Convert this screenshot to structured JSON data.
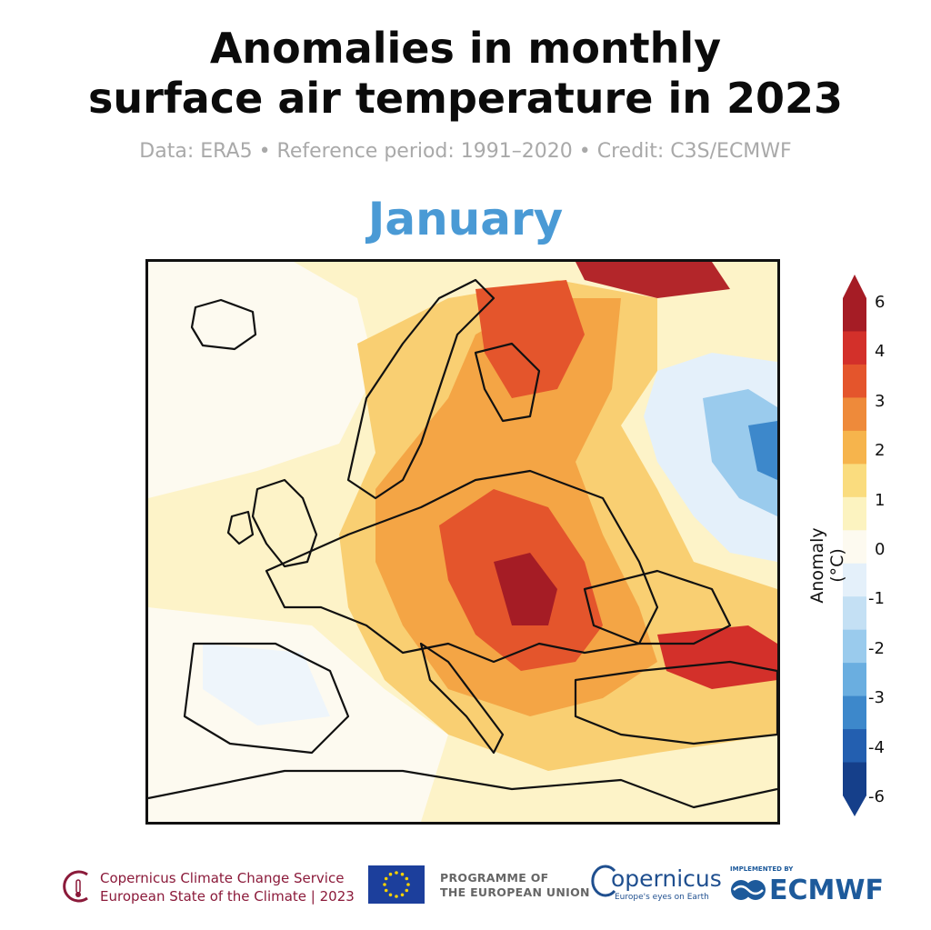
{
  "title_line1": "Anomalies in monthly",
  "title_line2": "surface air temperature in 2023",
  "subtitle": "Data: ERA5 • Reference period: 1991–2020 • Credit: C3S/ECMWF",
  "month": "January",
  "colorbar": {
    "title": "Anomaly (°C)",
    "ticks": [
      "6",
      "4",
      "3",
      "2",
      "1",
      "0",
      "-1",
      "-2",
      "-3",
      "-4",
      "-6"
    ],
    "colors": [
      "#a51c25",
      "#d3302a",
      "#e4552c",
      "#ee8a3a",
      "#f6b44c",
      "#fadc7e",
      "#fcf3c0",
      "#fdfaf0",
      "#e4f0fa",
      "#c4e0f4",
      "#9acbed",
      "#6aaee0",
      "#3d88cb",
      "#235fb0",
      "#153f8a"
    ]
  },
  "footer": {
    "c3s_line1": "Copernicus Climate Change Service",
    "c3s_line2": "European State of the Climate | 2023",
    "eu_line1": "PROGRAMME OF",
    "eu_line2": "THE EUROPEAN UNION",
    "copernicus": "opernicus",
    "copernicus_tag": "Europe's eyes on Earth",
    "implemented_by": "IMPLEMENTED BY",
    "ecmwf": "ECMWF"
  }
}
